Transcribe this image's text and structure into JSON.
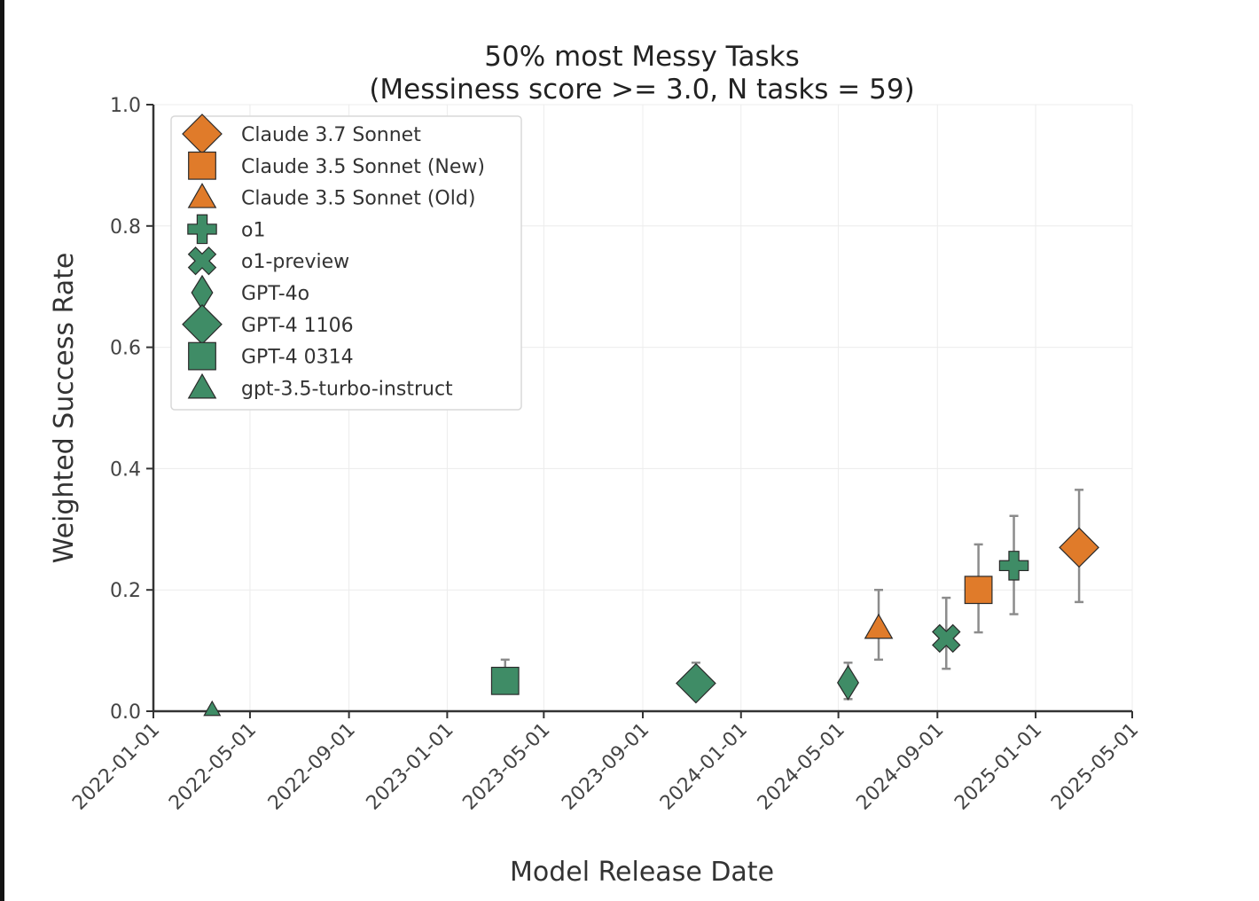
{
  "chart_data": {
    "type": "scatter",
    "title": "50% most Messy Tasks",
    "subtitle": "(Messiness score >= 3.0, N tasks = 59)",
    "xlabel": "Model Release Date",
    "ylabel": "Weighted Success Rate",
    "ylim": [
      0.0,
      1.0
    ],
    "xlim": [
      "2022-01-01",
      "2025-05-01"
    ],
    "yticks": [
      "0.0",
      "0.2",
      "0.4",
      "0.6",
      "0.8",
      "1.0"
    ],
    "xticks": [
      "2022-01-01",
      "2022-05-01",
      "2022-09-01",
      "2023-01-01",
      "2023-05-01",
      "2023-09-01",
      "2024-01-01",
      "2024-05-01",
      "2024-09-01",
      "2025-01-01",
      "2025-05-01"
    ],
    "grid": true,
    "legend_position": "upper left",
    "colors": {
      "anthropic": "#e07b2a",
      "openai": "#3f8c66",
      "errorbar": "#8c8c8c"
    },
    "series": [
      {
        "name": "Claude 3.7 Sonnet",
        "marker": "diamond-large",
        "color": "#e07b2a",
        "date": "2025-02-24",
        "value": 0.27,
        "err_low": 0.18,
        "err_high": 0.365
      },
      {
        "name": "Claude 3.5 Sonnet (New)",
        "marker": "square",
        "color": "#e07b2a",
        "date": "2024-10-22",
        "value": 0.2,
        "err_low": 0.13,
        "err_high": 0.275
      },
      {
        "name": "Claude 3.5 Sonnet (Old)",
        "marker": "triangle",
        "color": "#e07b2a",
        "date": "2024-06-20",
        "value": 0.137,
        "err_low": 0.085,
        "err_high": 0.2
      },
      {
        "name": "o1",
        "marker": "plus",
        "color": "#3f8c66",
        "date": "2024-12-05",
        "value": 0.24,
        "err_low": 0.16,
        "err_high": 0.322
      },
      {
        "name": "o1-preview",
        "marker": "x",
        "color": "#3f8c66",
        "date": "2024-09-12",
        "value": 0.12,
        "err_low": 0.07,
        "err_high": 0.187
      },
      {
        "name": "GPT-4o",
        "marker": "thin-diamond",
        "color": "#3f8c66",
        "date": "2024-05-13",
        "value": 0.047,
        "err_low": 0.02,
        "err_high": 0.08
      },
      {
        "name": "GPT-4 1106",
        "marker": "diamond-large",
        "color": "#3f8c66",
        "date": "2023-11-06",
        "value": 0.046,
        "err_low": 0.03,
        "err_high": 0.08
      },
      {
        "name": "GPT-4 0314",
        "marker": "square",
        "color": "#3f8c66",
        "date": "2023-03-14",
        "value": 0.05,
        "err_low": 0.03,
        "err_high": 0.085
      },
      {
        "name": "gpt-3.5-turbo-instruct",
        "marker": "triangle",
        "color": "#3f8c66",
        "date": "2022-03-15",
        "value": 0.0,
        "err_low": 0.0,
        "err_high": 0.0
      }
    ]
  }
}
